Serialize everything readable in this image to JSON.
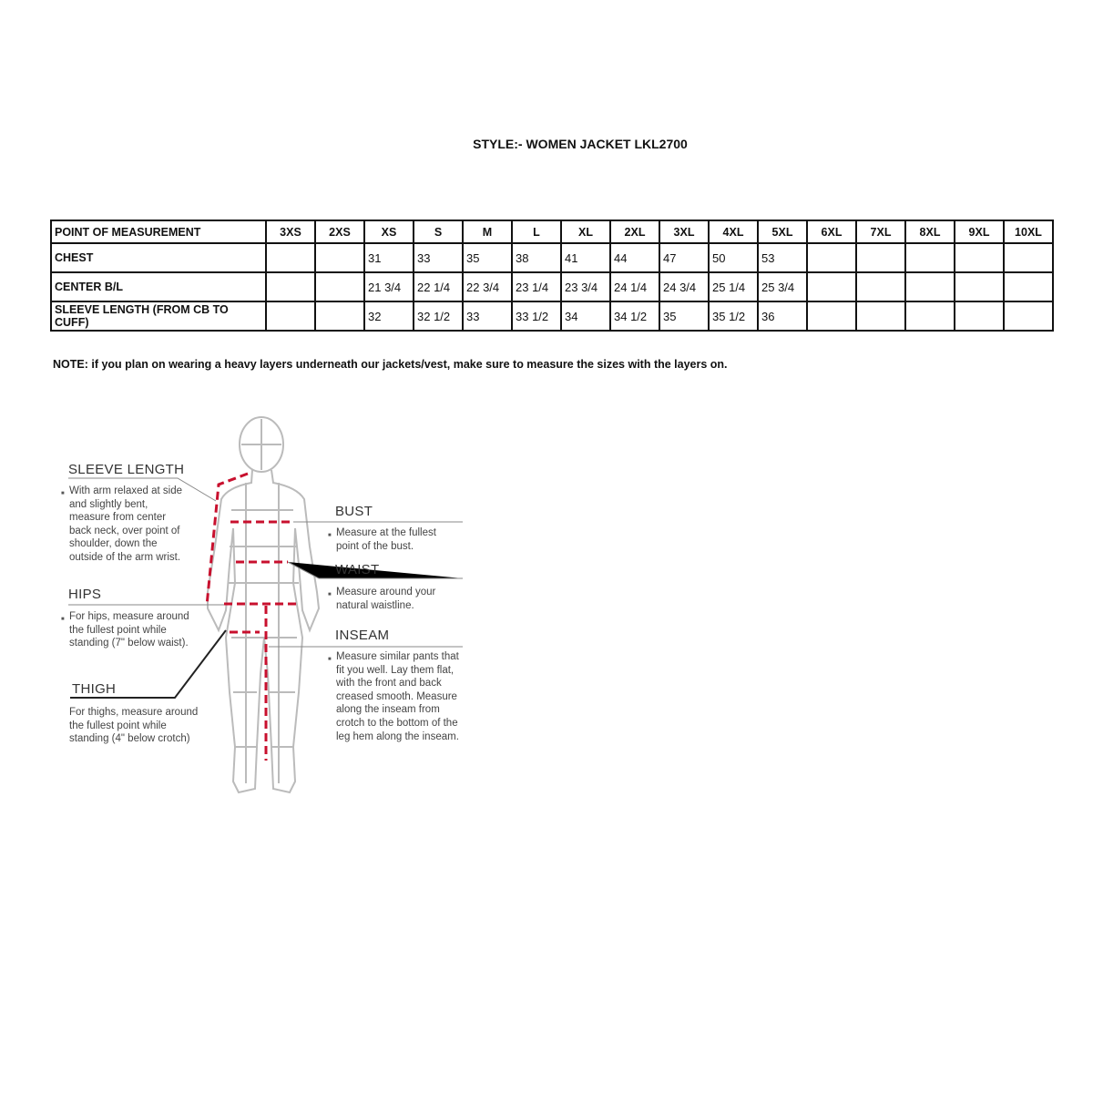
{
  "title": "STYLE:- WOMEN JACKET   LKL2700",
  "table": {
    "headers": [
      "POINT OF MEASUREMENT",
      "3XS",
      "2XS",
      "XS",
      "S",
      "M",
      "L",
      "XL",
      "2XL",
      "3XL",
      "4XL",
      "5XL",
      "6XL",
      "7XL",
      "8XL",
      "9XL",
      "10XL"
    ],
    "rows": [
      [
        "CHEST",
        "",
        "",
        "31",
        "33",
        "35",
        "38",
        "41",
        "44",
        "47",
        "50",
        "53",
        "",
        "",
        "",
        "",
        ""
      ],
      [
        "CENTER B/L",
        "",
        "",
        "21 3/4",
        "22 1/4",
        "22 3/4",
        "23 1/4",
        "23 3/4",
        "24 1/4",
        "24 3/4",
        "25 1/4",
        "25 3/4",
        "",
        "",
        "",
        "",
        ""
      ],
      [
        "SLEEVE LENGTH (FROM CB TO CUFF)",
        "",
        "",
        "32",
        "32 1/2",
        "33",
        "33 1/2",
        "34",
        "34 1/2",
        "35",
        "35 1/2",
        "36",
        "",
        "",
        "",
        "",
        ""
      ]
    ]
  },
  "note": "NOTE: if you plan on wearing a heavy layers underneath our jackets/vest, make sure to measure the sizes with the layers on.",
  "guide": {
    "sleeve": {
      "label": "SLEEVE LENGTH",
      "text": "With arm relaxed at side and slightly bent, measure from center back neck, over point of shoulder, down the outside of the arm wrist."
    },
    "hips": {
      "label": "HIPS",
      "text": "For hips, measure around the fullest point while standing (7\" below waist)."
    },
    "thigh": {
      "label": "THIGH",
      "text": "For thighs, measure around the fullest point while standing (4\" below crotch)"
    },
    "bust": {
      "label": "BUST",
      "text": "Measure at the fullest point of the bust."
    },
    "waist": {
      "label": "WAIST",
      "text": "Measure around your natural waistline."
    },
    "inseam": {
      "label": "INSEAM",
      "text": "Measure similar pants that fit you well. Lay them flat, with the front and back creased smooth. Measure along the inseam from crotch to the bottom of the leg hem along the inseam."
    },
    "colors": {
      "measure_line": "#c8102e",
      "figure": "#bbbbbb"
    }
  }
}
